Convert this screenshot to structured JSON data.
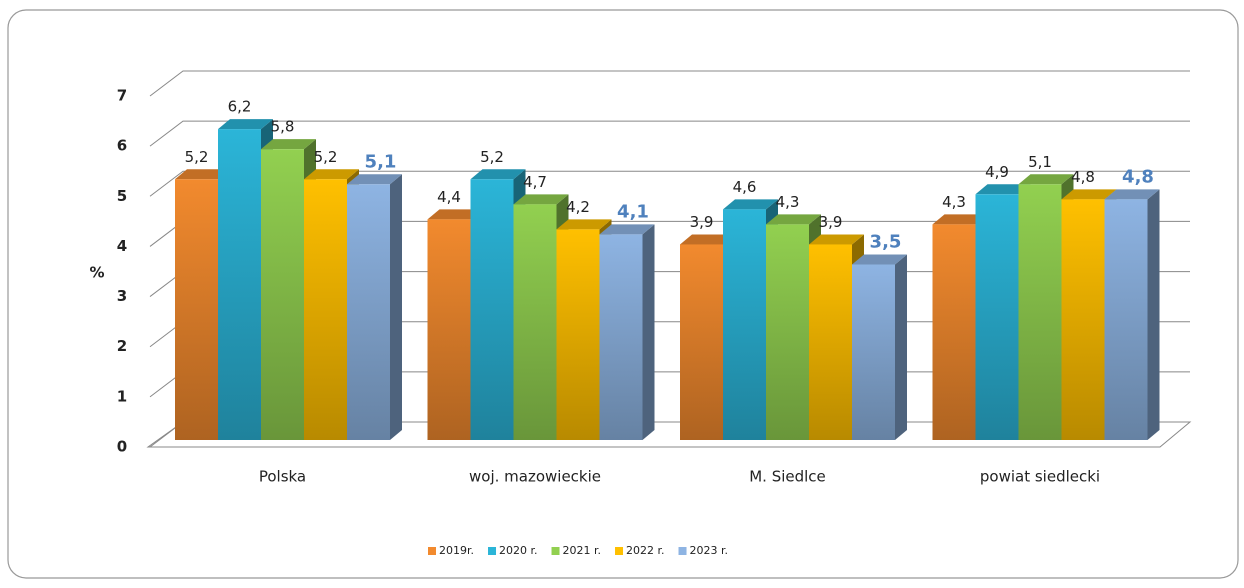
{
  "chart_data": {
    "type": "bar3d",
    "y_label": "%",
    "categories": [
      "Polska",
      "woj. mazowieckie",
      "M. Siedlce",
      "powiat siedlecki"
    ],
    "series": [
      {
        "name": "2019r.",
        "color": "#f28a2e",
        "values": [
          5.2,
          4.4,
          3.9,
          4.3
        ],
        "value_labels": [
          "5,2",
          "4,4",
          "3,9",
          "4,3"
        ]
      },
      {
        "name": "2020 r.",
        "color": "#2bb5d8",
        "values": [
          6.2,
          5.2,
          4.6,
          4.9
        ],
        "value_labels": [
          "6,2",
          "5,2",
          "4,6",
          "4,9"
        ]
      },
      {
        "name": "2021 r.",
        "color": "#92d050",
        "values": [
          5.8,
          4.7,
          4.3,
          5.1
        ],
        "value_labels": [
          "5,8",
          "4,7",
          "4,3",
          "5,1"
        ]
      },
      {
        "name": "2022 r.",
        "color": "#ffc000",
        "values": [
          5.2,
          4.2,
          3.9,
          4.8
        ],
        "value_labels": [
          "5,2",
          "4,2",
          "3,9",
          "4,8"
        ]
      },
      {
        "name": "2023 r.",
        "color": "#8eb4e3",
        "values": [
          5.1,
          4.1,
          3.5,
          4.8
        ],
        "value_labels": [
          "5,1",
          "4,1",
          "3,5",
          "4,8"
        ]
      }
    ],
    "ylim": [
      0,
      7
    ],
    "yticks": [
      0,
      1,
      2,
      3,
      4,
      5,
      6,
      7
    ],
    "grid": true,
    "legend": "bottom"
  }
}
